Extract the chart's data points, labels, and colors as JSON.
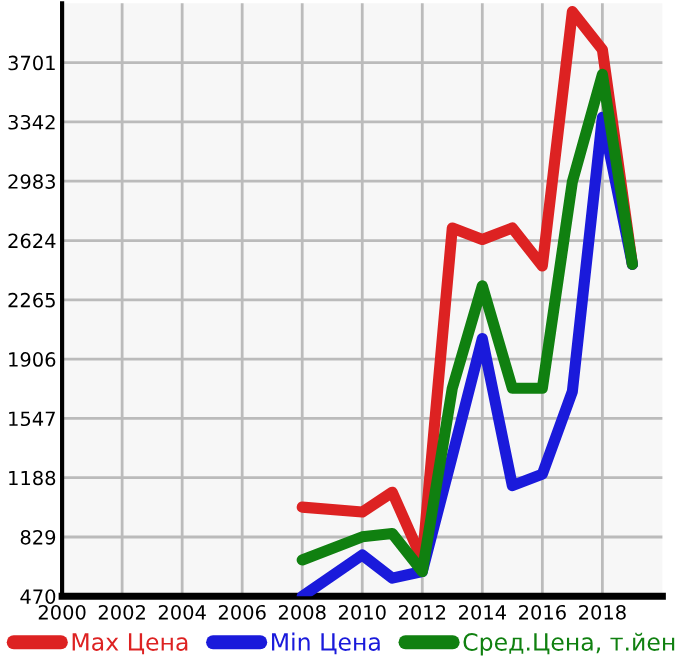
{
  "chart_data": {
    "type": "line",
    "x": [
      2008,
      2010,
      2011,
      2012,
      2013,
      2014,
      2015,
      2016,
      2017,
      2018,
      2019
    ],
    "series": [
      {
        "name": "Max Цена",
        "color": "#dd2222",
        "values": [
          1010,
          980,
          1100,
          690,
          2700,
          2630,
          2700,
          2470,
          4010,
          3780,
          2480
        ]
      },
      {
        "name": "Min Цена",
        "color": "#1a1adb",
        "values": [
          470,
          720,
          580,
          620,
          1320,
          2030,
          1140,
          1210,
          1710,
          3370,
          2480
        ]
      },
      {
        "name": "Сред.Цена, т.йен",
        "color": "#108010",
        "values": [
          690,
          830,
          850,
          620,
          1730,
          2350,
          1730,
          1730,
          2980,
          3630,
          2480
        ]
      }
    ],
    "xlim": [
      2000,
      2020
    ],
    "xticks": [
      2000,
      2002,
      2004,
      2006,
      2008,
      2010,
      2012,
      2014,
      2016,
      2018
    ],
    "ylim": [
      470,
      4060
    ],
    "yticks": [
      470,
      829,
      1188,
      1547,
      1906,
      2265,
      2624,
      2983,
      3342,
      3701
    ],
    "grid": true,
    "legend": "bottom",
    "marker": "none",
    "line_style": "solid"
  }
}
